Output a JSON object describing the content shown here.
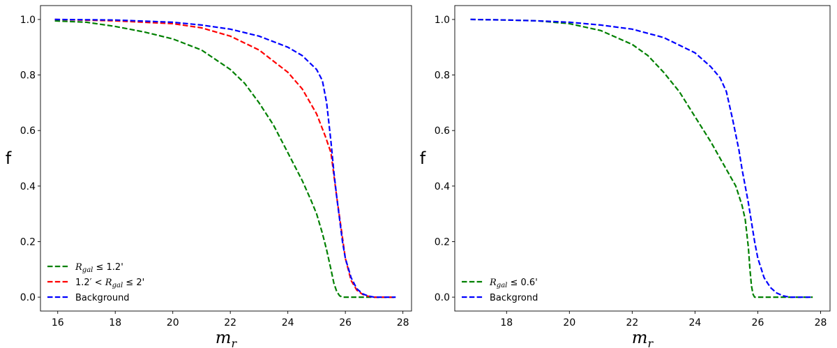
{
  "chart_data": [
    {
      "type": "line",
      "title": "",
      "xlabel_main": "m",
      "xlabel_sub": "r",
      "ylabel": "f",
      "xlim": [
        15.4,
        28.3
      ],
      "ylim": [
        -0.05,
        1.05
      ],
      "xticks": [
        "16",
        "18",
        "20",
        "22",
        "24",
        "26",
        "28"
      ],
      "yticks": [
        "0.0",
        "0.2",
        "0.4",
        "0.6",
        "0.8",
        "1.0"
      ],
      "grid": false,
      "legend_position": "lower-left",
      "series": [
        {
          "legend": {
            "lhs": "R",
            "sub": "gal",
            "rhs": " ≤ 1.2'"
          },
          "color": "#008000",
          "x": [
            15.9,
            17,
            18,
            19,
            20,
            21,
            22,
            22.5,
            23,
            23.5,
            24,
            24.5,
            24.8,
            25.0,
            25.2,
            25.35,
            25.5,
            25.6,
            25.7,
            25.8,
            25.9,
            26.0,
            27.0,
            27.75
          ],
          "y": [
            0.995,
            0.99,
            0.975,
            0.955,
            0.93,
            0.89,
            0.82,
            0.77,
            0.7,
            0.62,
            0.52,
            0.42,
            0.35,
            0.3,
            0.23,
            0.17,
            0.1,
            0.05,
            0.02,
            0.005,
            0.0,
            0.0,
            0.0,
            0.0
          ]
        },
        {
          "legend": {
            "pre": "1.2′ < ",
            "lhs": "R",
            "sub": "gal",
            "rhs": " ≤ 2'"
          },
          "color": "#ff0000",
          "x": [
            15.9,
            18,
            20,
            21,
            22,
            23,
            24,
            24.5,
            25.0,
            25.3,
            25.5,
            25.7,
            25.85,
            26.0,
            26.2,
            26.4,
            26.6,
            26.8,
            27.0,
            27.75
          ],
          "y": [
            1.0,
            0.995,
            0.985,
            0.97,
            0.94,
            0.89,
            0.81,
            0.75,
            0.66,
            0.58,
            0.52,
            0.36,
            0.25,
            0.14,
            0.06,
            0.025,
            0.01,
            0.003,
            0.0,
            0.0
          ]
        },
        {
          "legend": {
            "text": "Background"
          },
          "color": "#0000ff",
          "x": [
            15.9,
            18,
            20,
            21,
            22,
            23,
            24,
            24.5,
            25.0,
            25.2,
            25.35,
            25.5,
            25.6,
            25.7,
            25.8,
            25.9,
            26.0,
            26.2,
            26.4,
            26.6,
            26.8,
            27.0,
            27.75
          ],
          "y": [
            1.0,
            0.998,
            0.99,
            0.98,
            0.965,
            0.94,
            0.9,
            0.87,
            0.82,
            0.78,
            0.7,
            0.56,
            0.45,
            0.36,
            0.28,
            0.2,
            0.14,
            0.07,
            0.03,
            0.012,
            0.004,
            0.0,
            0.0
          ]
        }
      ]
    },
    {
      "type": "line",
      "title": "",
      "xlabel_main": "m",
      "xlabel_sub": "r",
      "ylabel": "f",
      "xlim": [
        16.35,
        28.3
      ],
      "ylim": [
        -0.05,
        1.05
      ],
      "xticks": [
        "18",
        "20",
        "22",
        "24",
        "26",
        "28"
      ],
      "yticks": [
        "0.0",
        "0.2",
        "0.4",
        "0.6",
        "0.8",
        "1.0"
      ],
      "grid": false,
      "legend_position": "lower-left",
      "series": [
        {
          "legend": {
            "lhs": "R",
            "sub": "gal",
            "rhs": " ≤ 0.6'"
          },
          "color": "#008000",
          "x": [
            16.85,
            18,
            19,
            20,
            21,
            22,
            22.5,
            23,
            23.5,
            24,
            24.5,
            25.0,
            25.3,
            25.5,
            25.6,
            25.7,
            25.75,
            25.8,
            25.85,
            25.9,
            26.0,
            27.0,
            27.75
          ],
          "y": [
            1.0,
            0.998,
            0.995,
            0.985,
            0.96,
            0.91,
            0.87,
            0.81,
            0.74,
            0.65,
            0.56,
            0.46,
            0.4,
            0.33,
            0.28,
            0.18,
            0.1,
            0.04,
            0.01,
            0.0,
            0.0,
            0.0,
            0.0
          ]
        },
        {
          "legend": {
            "text": "Backgrond"
          },
          "color": "#0000ff",
          "x": [
            16.85,
            18,
            19,
            20,
            21,
            22,
            23,
            24,
            24.5,
            24.8,
            25.0,
            25.2,
            25.4,
            25.5,
            25.7,
            25.8,
            25.9,
            26.0,
            26.2,
            26.4,
            26.6,
            26.8,
            27.0,
            27.75
          ],
          "y": [
            1.0,
            0.998,
            0.995,
            0.99,
            0.98,
            0.965,
            0.935,
            0.88,
            0.83,
            0.79,
            0.74,
            0.64,
            0.53,
            0.46,
            0.34,
            0.27,
            0.2,
            0.14,
            0.07,
            0.035,
            0.015,
            0.005,
            0.0,
            0.0
          ]
        }
      ]
    }
  ]
}
